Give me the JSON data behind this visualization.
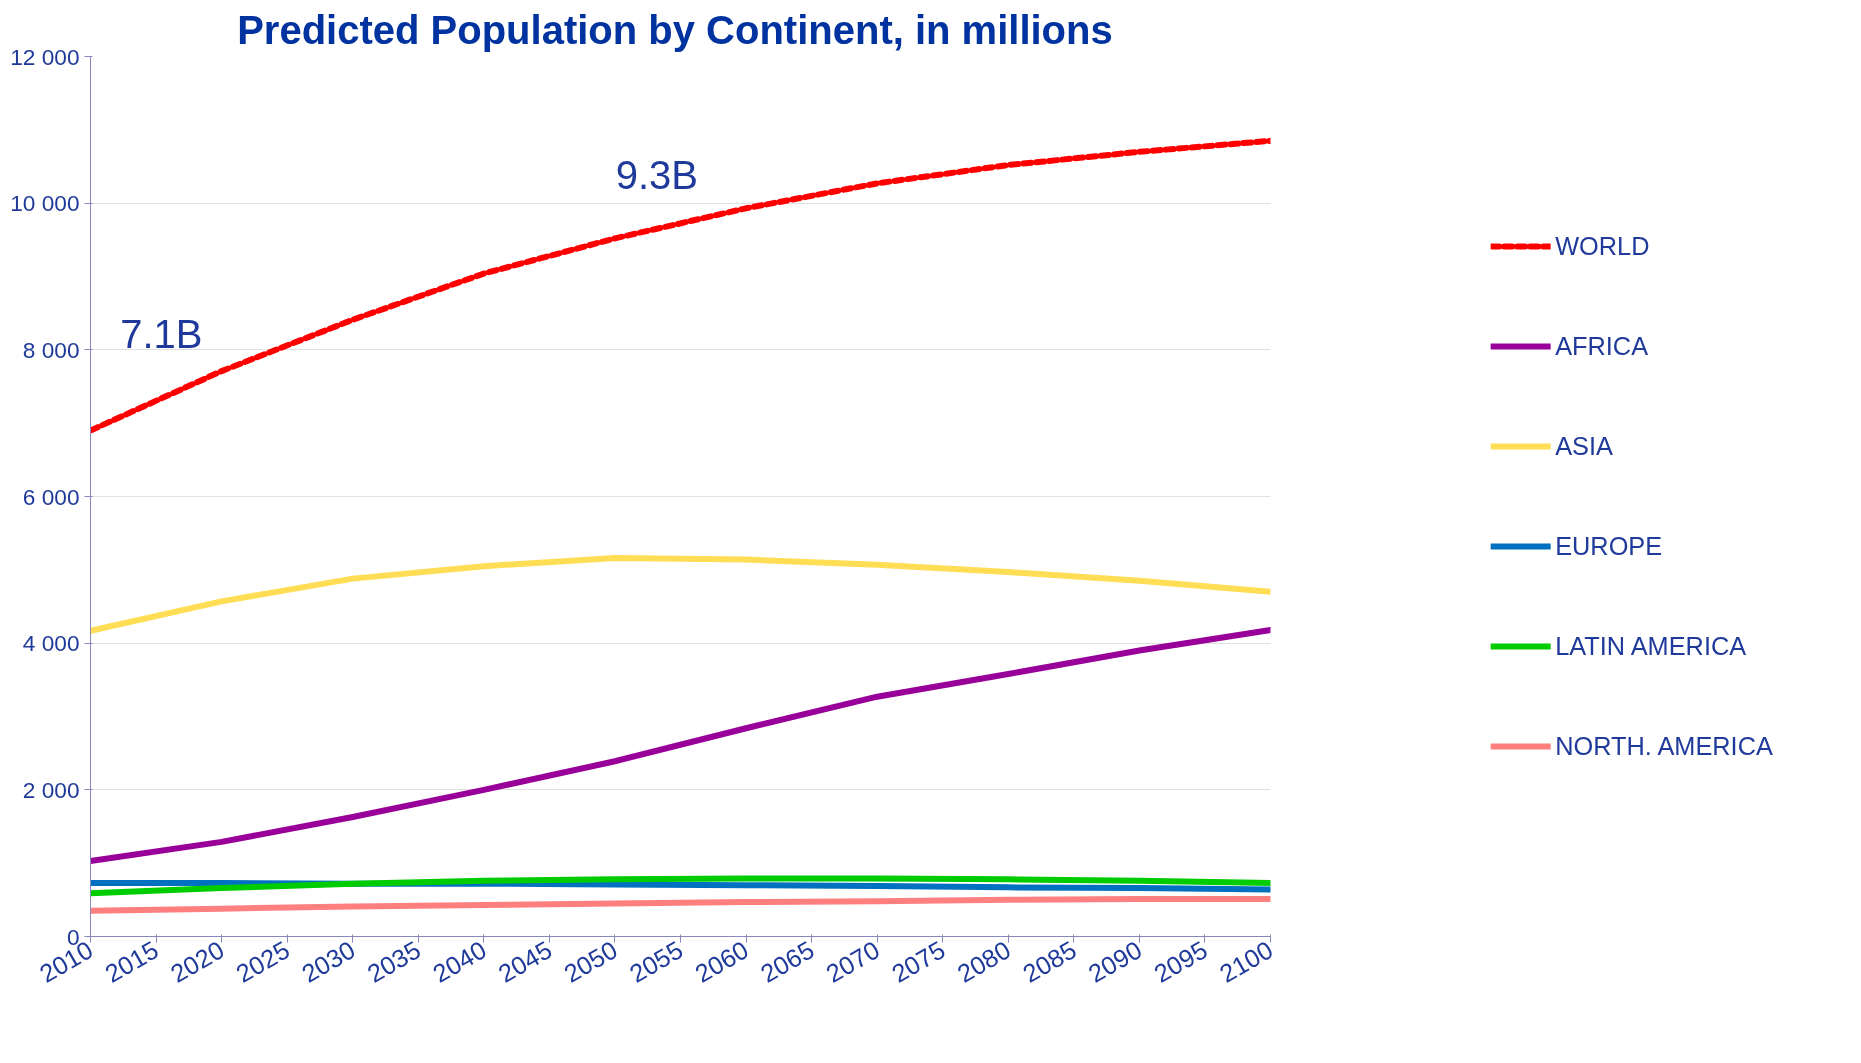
{
  "chart_data": {
    "type": "line",
    "title": "Predicted Population by Continent,  in millions",
    "x": [
      2010,
      2020,
      2030,
      2040,
      2050,
      2060,
      2070,
      2080,
      2090,
      2100
    ],
    "series": [
      {
        "name": "WORLD",
        "color": "#ff0000",
        "line_style": "dashed",
        "values": [
          6900,
          7710,
          8410,
          9040,
          9520,
          9930,
          10270,
          10520,
          10700,
          10850
        ]
      },
      {
        "name": "AFRICA",
        "color": "#990099",
        "values": [
          1030,
          1290,
          1630,
          2000,
          2390,
          2840,
          3270,
          3580,
          3900,
          4180
        ]
      },
      {
        "name": "ASIA",
        "color": "#ffdd55",
        "values": [
          4170,
          4570,
          4880,
          5050,
          5160,
          5140,
          5070,
          4970,
          4850,
          4700
        ]
      },
      {
        "name": "EUROPE",
        "color": "#0070c0",
        "values": [
          730,
          730,
          720,
          720,
          710,
          700,
          690,
          670,
          660,
          640
        ]
      },
      {
        "name": "LATIN AMERICA",
        "color": "#00cc00",
        "values": [
          590,
          660,
          720,
          760,
          780,
          790,
          790,
          780,
          760,
          730
        ]
      },
      {
        "name": "NORTH. AMERICA",
        "color": "#ff7f7f",
        "values": [
          350,
          380,
          410,
          430,
          450,
          470,
          480,
          500,
          510,
          510
        ]
      }
    ],
    "xlim": [
      2010,
      2100
    ],
    "xticks": [
      2010,
      2015,
      2020,
      2025,
      2030,
      2035,
      2040,
      2045,
      2050,
      2055,
      2060,
      2065,
      2070,
      2075,
      2080,
      2085,
      2090,
      2095,
      2100
    ],
    "ylim": [
      0,
      12000
    ],
    "yticks": [
      0,
      {
        "value": 2000,
        "label": "2 000"
      },
      {
        "value": 4000,
        "label": "4 000"
      },
      {
        "value": 6000,
        "label": "6 000"
      },
      {
        "value": 8000,
        "label": "8 000"
      },
      {
        "value": 10000,
        "label": "10 000"
      },
      {
        "value": 12000,
        "label": "12 000"
      }
    ],
    "annotations": [
      "7.1B",
      "9.3B"
    ],
    "grid": "y",
    "legend": "right",
    "marker": "none",
    "line_style": "solid"
  }
}
